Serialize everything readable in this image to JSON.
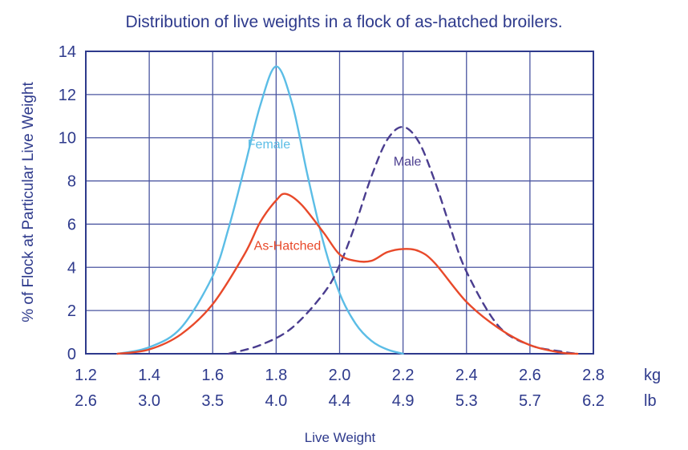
{
  "chart_data": {
    "type": "line",
    "title": "Distribution of live weights in a flock of as-hatched broilers.",
    "xlabel": "Live Weight",
    "ylabel": "% of Flock at Particular Live Weight",
    "xlim": [
      1.2,
      2.8
    ],
    "ylim": [
      0,
      14
    ],
    "grid": true,
    "x_ticks_kg": [
      "1.2",
      "1.4",
      "1.6",
      "1.8",
      "2.0",
      "2.2",
      "2.4",
      "2.6",
      "2.8"
    ],
    "x_ticks_lb": [
      "2.6",
      "3.0",
      "3.5",
      "4.0",
      "4.4",
      "4.9",
      "5.3",
      "5.7",
      "6.2"
    ],
    "x_unit_kg": "kg",
    "x_unit_lb": "lb",
    "y_ticks": [
      "0",
      "2",
      "4",
      "6",
      "8",
      "10",
      "12",
      "14"
    ],
    "series": [
      {
        "name": "Female",
        "color": "#5bbde6",
        "style": "solid",
        "points": [
          [
            1.3,
            0.0
          ],
          [
            1.4,
            0.3
          ],
          [
            1.5,
            1.2
          ],
          [
            1.6,
            3.6
          ],
          [
            1.65,
            5.8
          ],
          [
            1.7,
            8.6
          ],
          [
            1.75,
            11.5
          ],
          [
            1.8,
            13.3
          ],
          [
            1.85,
            11.6
          ],
          [
            1.9,
            8.2
          ],
          [
            1.95,
            5.1
          ],
          [
            2.0,
            2.8
          ],
          [
            2.05,
            1.4
          ],
          [
            2.1,
            0.6
          ],
          [
            2.15,
            0.2
          ],
          [
            2.2,
            0.0
          ]
        ]
      },
      {
        "name": "Male",
        "color": "#4a3d8f",
        "style": "dashed",
        "points": [
          [
            1.65,
            0.0
          ],
          [
            1.75,
            0.4
          ],
          [
            1.85,
            1.2
          ],
          [
            1.95,
            2.8
          ],
          [
            2.0,
            4.1
          ],
          [
            2.05,
            6.0
          ],
          [
            2.1,
            8.2
          ],
          [
            2.15,
            9.9
          ],
          [
            2.2,
            10.5
          ],
          [
            2.25,
            9.8
          ],
          [
            2.3,
            8.0
          ],
          [
            2.35,
            5.8
          ],
          [
            2.4,
            3.8
          ],
          [
            2.5,
            1.3
          ],
          [
            2.6,
            0.4
          ],
          [
            2.7,
            0.1
          ],
          [
            2.75,
            0.0
          ]
        ]
      },
      {
        "name": "As-Hatched",
        "color": "#e8492a",
        "style": "solid",
        "points": [
          [
            1.3,
            0.0
          ],
          [
            1.4,
            0.2
          ],
          [
            1.5,
            0.9
          ],
          [
            1.6,
            2.3
          ],
          [
            1.7,
            4.6
          ],
          [
            1.75,
            6.1
          ],
          [
            1.8,
            7.1
          ],
          [
            1.83,
            7.4
          ],
          [
            1.88,
            6.9
          ],
          [
            1.95,
            5.6
          ],
          [
            2.0,
            4.6
          ],
          [
            2.05,
            4.3
          ],
          [
            2.1,
            4.3
          ],
          [
            2.15,
            4.7
          ],
          [
            2.2,
            4.85
          ],
          [
            2.25,
            4.75
          ],
          [
            2.3,
            4.2
          ],
          [
            2.4,
            2.4
          ],
          [
            2.5,
            1.2
          ],
          [
            2.6,
            0.4
          ],
          [
            2.7,
            0.05
          ],
          [
            2.75,
            0.0
          ]
        ]
      }
    ],
    "annotations": [
      {
        "text": "Female",
        "x": 1.71,
        "y": 9.5
      },
      {
        "text": "Male",
        "x": 2.17,
        "y": 8.7
      },
      {
        "text": "As-Hatched",
        "x": 1.73,
        "y": 4.8
      }
    ]
  },
  "colors": {
    "frame": "#2e3a8c",
    "grid": "#4a55a0",
    "text": "#2e3a8c"
  }
}
